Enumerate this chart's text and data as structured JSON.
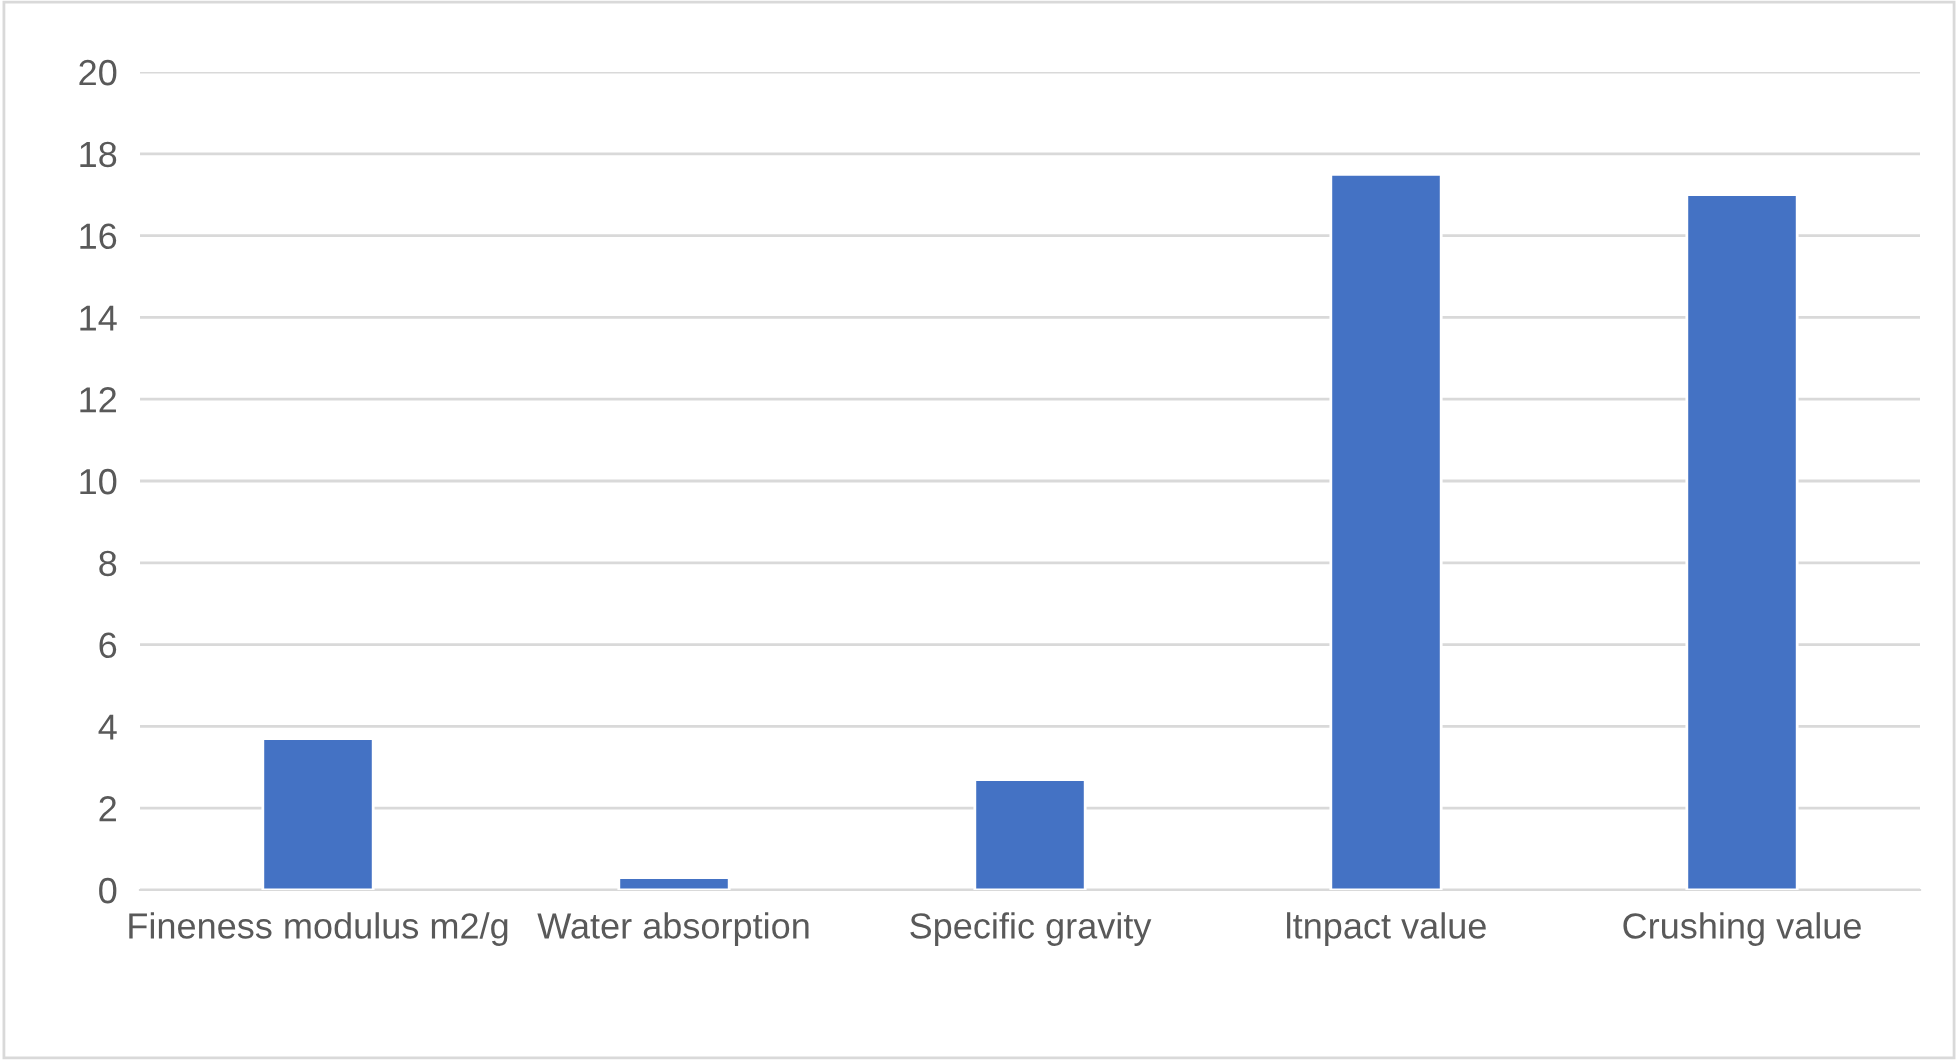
{
  "chart_data": {
    "type": "bar",
    "categories": [
      "Fineness modulus m2/g",
      "Water absorption",
      "Specific gravity",
      "ltnpact value",
      "Crushing value"
    ],
    "values": [
      3.7,
      0.3,
      2.7,
      17.5,
      17
    ],
    "color": "#4472c4",
    "ylim": [
      0,
      20
    ],
    "yticks": [
      0,
      2,
      4,
      6,
      8,
      10,
      12,
      14,
      16,
      18,
      20
    ],
    "grid": "y",
    "legend": false
  }
}
